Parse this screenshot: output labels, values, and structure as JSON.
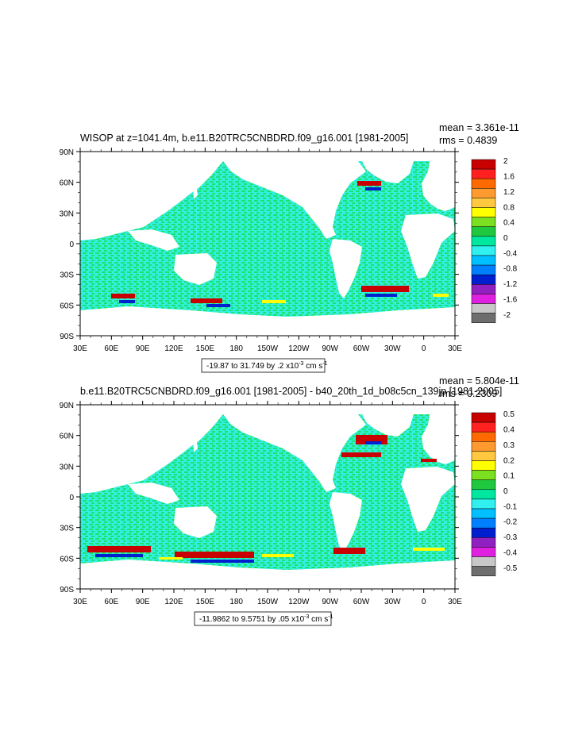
{
  "panels": [
    {
      "title": "WISOP at z=1041.4m, b.e11.B20TRC5CNBDRD.f09_g16.001 [1981-2005]",
      "mean_text": "mean = 3.361e-11",
      "rms_text": "rms = 0.4839",
      "range_prefix": "-19.87 to 31.749 by .2 x10",
      "range_exp": "-3",
      "range_units": " cm s",
      "range_units_exp": "-1",
      "colorbar_labels": [
        "2",
        "1.6",
        "1.2",
        "0.8",
        "0.4",
        "0",
        "-0.4",
        "-0.8",
        "-1.2",
        "-1.6",
        "-2"
      ]
    },
    {
      "title": "b.e11.B20TRC5CNBDRD.f09_g16.001 [1981-2005] - b40_20th_1d_b08c5cn_139jp [1981-2005]",
      "mean_text": "mean = 5.804e-11",
      "rms_text": "rms = 0.2309",
      "range_prefix": "-11.9862 to 9.5751 by .05 x10",
      "range_exp": "-3",
      "range_units": " cm s",
      "range_units_exp": "-1",
      "colorbar_labels": [
        "0.5",
        "0.4",
        "0.3",
        "0.2",
        "0.1",
        "0",
        "-0.1",
        "-0.2",
        "-0.3",
        "-0.4",
        "-0.5"
      ]
    }
  ],
  "lat_labels": [
    "90N",
    "60N",
    "30N",
    "0",
    "30S",
    "60S",
    "90S"
  ],
  "lon_labels": [
    "30E",
    "60E",
    "90E",
    "120E",
    "150E",
    "180",
    "150W",
    "120W",
    "90W",
    "60W",
    "30W",
    "0",
    "30E"
  ],
  "colorbar_colors": [
    "#c80000",
    "#ff2020",
    "#ff6a00",
    "#ff9a30",
    "#ffc840",
    "#ffff00",
    "#7ae020",
    "#20c840",
    "#00e8a0",
    "#30f0f0",
    "#00c0ff",
    "#0080ff",
    "#0020d0",
    "#9020c0",
    "#e020e0",
    "#c8c8c8",
    "#6e6e6e"
  ],
  "colors": {
    "ocean_a": "#20e070",
    "ocean_b": "#30f0e0",
    "land": "#ffffff"
  }
}
